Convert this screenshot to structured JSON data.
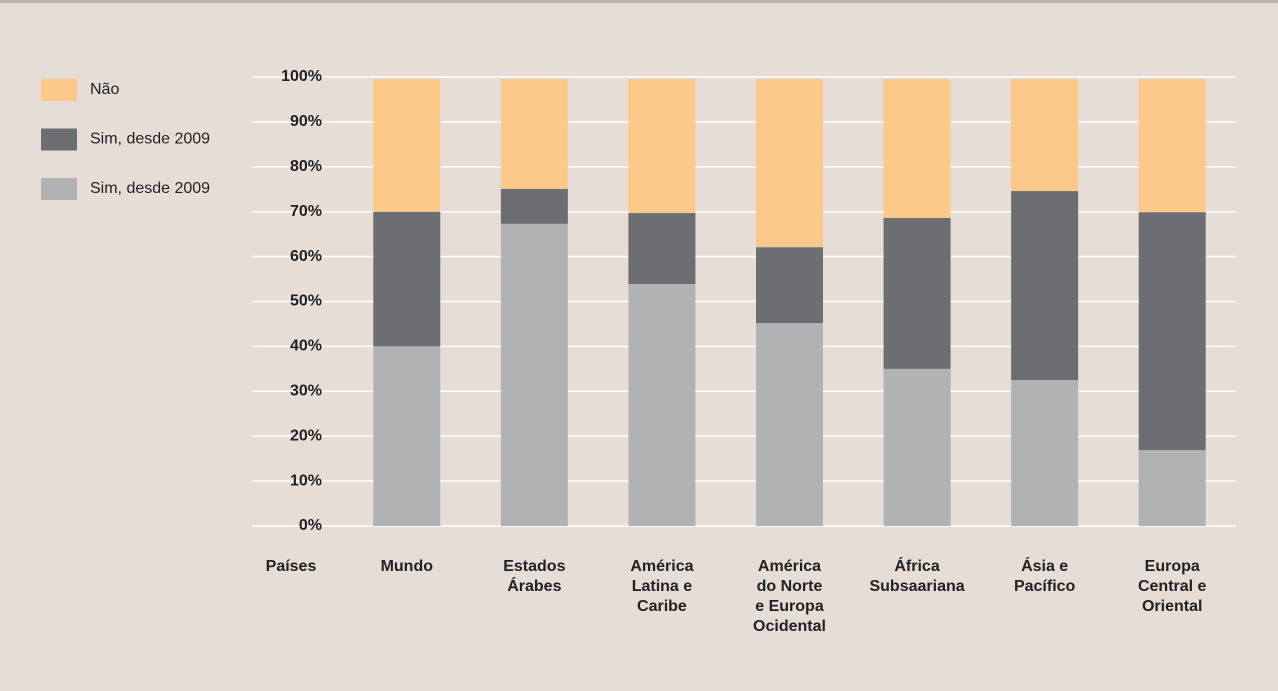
{
  "chart_data": {
    "type": "stacked_bar",
    "x_label": "Países",
    "categories": [
      "Mundo",
      "Estados\nÁrabes",
      "América\nLatina e\nCaribe",
      "América\ndo Norte\ne Europa\nOcidental",
      "África\nSubsaariana",
      "Ásia e\nPacífico",
      "Europa\nCentral e\nOriental"
    ],
    "series": [
      {
        "name": "Não",
        "color": "#fcc98a",
        "values": [
          29.5,
          24.4,
          29.8,
          37.4,
          30.9,
          24.9,
          29.6
        ]
      },
      {
        "name": "Sim, desde 2009",
        "color": "#6d6e71",
        "values": [
          30,
          7.8,
          15.8,
          16.9,
          33.6,
          42.1,
          53
        ]
      },
      {
        "name": "Sim, desde 2009",
        "color": "#b1b2b4",
        "values": [
          40,
          67.3,
          53.9,
          45.2,
          35,
          32.5,
          16.9
        ]
      }
    ],
    "ylim": [
      0,
      100
    ],
    "yticks": [
      {
        "value": 0,
        "label": "0%"
      },
      {
        "value": 10,
        "label": "10%"
      },
      {
        "value": 20,
        "label": "20%"
      },
      {
        "value": 30,
        "label": "30%"
      },
      {
        "value": 40,
        "label": "40%"
      },
      {
        "value": 50,
        "label": "50%"
      },
      {
        "value": 60,
        "label": "60%"
      },
      {
        "value": 70,
        "label": "70%"
      },
      {
        "value": 80,
        "label": "80%"
      },
      {
        "value": 90,
        "label": "90%"
      },
      {
        "value": 100,
        "label": "100%"
      }
    ],
    "grid": true
  }
}
